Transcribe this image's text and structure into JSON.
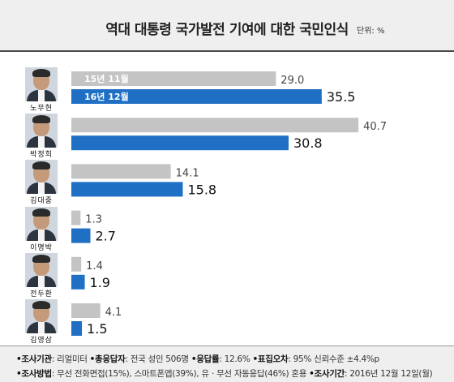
{
  "title": "역대 대통령 국가발전 기여에 대한 국민인식",
  "unit_label": "단위: %",
  "chart_data": {
    "type": "bar",
    "title": "역대 대통령 국가발전 기여에 대한 국민인식",
    "unit": "단위: %",
    "categories": [
      "노무현",
      "박정희",
      "김대중",
      "이명박",
      "전두환",
      "김영삼"
    ],
    "series": [
      {
        "name": "15년 11월",
        "values": [
          29.0,
          40.7,
          14.1,
          1.3,
          1.4,
          4.1
        ],
        "color": "#c4c4c4"
      },
      {
        "name": "16년 12월",
        "values": [
          35.5,
          30.8,
          15.8,
          2.7,
          1.9,
          1.5
        ],
        "color": "#1f6fc4"
      }
    ],
    "value_labels": [
      [
        "29.0",
        "40.7",
        "14.1",
        "1.3",
        "1.4",
        "4.1"
      ],
      [
        "35.5",
        "30.8",
        "15.8",
        "2.7",
        "1.9",
        "1.5"
      ]
    ],
    "orientation": "horizontal",
    "legend": "inside-first-bars"
  },
  "photo_icons": [
    "portrait-icon",
    "portrait-icon",
    "portrait-icon",
    "portrait-icon",
    "portrait-icon",
    "portrait-icon"
  ],
  "footer": {
    "line1_k1": "•조사기관",
    "line1_v1": ": 리얼미터 ",
    "line1_k2": "•총응답자",
    "line1_v2": ": 전국 성인 506명 ",
    "line1_k3": "•응답률",
    "line1_v3": ": 12.6% ",
    "line1_k4": "•표집오차",
    "line1_v4": ": 95% 신뢰수준 ±4.4%p",
    "line2_k1": "•조사방법",
    "line2_v1": ": 무선 전화면접(15%), 스마트폰앱(39%), 유ㆍ무선 자동응답(46%) 혼용 ",
    "line2_k2": "•조사기간",
    "line2_v2": ": 2016년 12월 12일(월)"
  }
}
